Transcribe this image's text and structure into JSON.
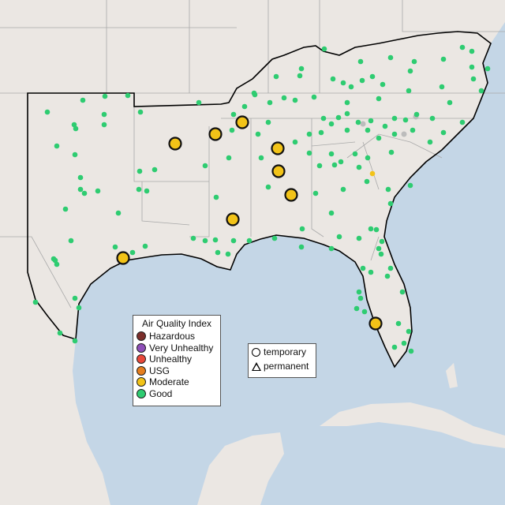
{
  "legend": {
    "title": "Air Quality Index",
    "items": [
      {
        "label": "Hazardous",
        "color": "#7b2e2b"
      },
      {
        "label": "Very Unhealthy",
        "color": "#8e4fb8"
      },
      {
        "label": "Unhealthy",
        "color": "#e8483a"
      },
      {
        "label": "USG",
        "color": "#e57e1e"
      },
      {
        "label": "Moderate",
        "color": "#f2c318"
      },
      {
        "label": "Good",
        "color": "#2ecc71"
      }
    ]
  },
  "monitor_types": [
    {
      "label": "temporary",
      "shape": "circle"
    },
    {
      "label": "permanent",
      "shape": "triangle"
    }
  ],
  "colors": {
    "ocean": "#c4d6e6",
    "land": "#ebe7e3",
    "region_outline": "#000000",
    "borders": "#a9a9a9"
  }
}
